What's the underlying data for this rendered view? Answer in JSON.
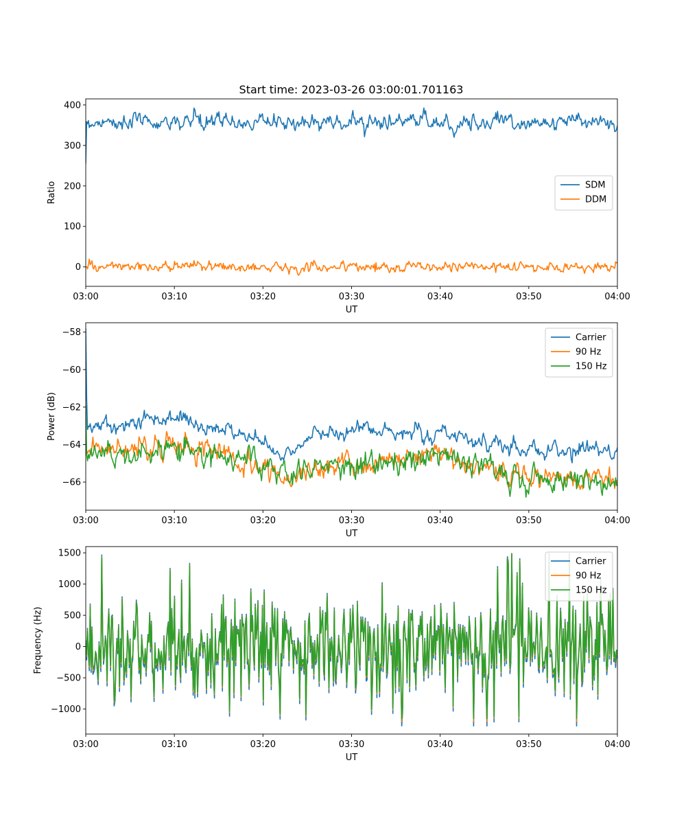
{
  "figure": {
    "title": "Start time: 2023-03-26 03:00:01.701163"
  },
  "chart_data": [
    {
      "type": "line",
      "title": "Start time: 2023-03-26 03:00:01.701163",
      "xlabel": "UT",
      "ylabel": "Ratio",
      "xlim": [
        "03:00",
        "04:00"
      ],
      "ylim": [
        -48,
        415
      ],
      "x_ticks": [
        "03:00",
        "03:10",
        "03:20",
        "03:30",
        "03:40",
        "03:50",
        "04:00"
      ],
      "y_ticks": [
        0,
        100,
        200,
        300,
        400
      ],
      "legend_placement": "center-right",
      "grid": false,
      "sample_count": 600,
      "series": [
        {
          "name": "SDM",
          "color": "#1f77b4",
          "start_value": 255,
          "mean": 358,
          "spread": 15,
          "min": 318,
          "max": 393
        },
        {
          "name": "DDM",
          "color": "#ff7f0e",
          "start_value": 0,
          "mean": 0,
          "spread": 9,
          "min": -25,
          "max": 23
        }
      ]
    },
    {
      "type": "line",
      "xlabel": "UT",
      "ylabel": "Power (dB)",
      "xlim": [
        "03:00",
        "04:00"
      ],
      "ylim": [
        -67.5,
        -57.5
      ],
      "x_ticks": [
        "03:00",
        "03:10",
        "03:20",
        "03:30",
        "03:40",
        "03:50",
        "04:00"
      ],
      "y_ticks": [
        -66,
        -64,
        -62,
        -60,
        -58
      ],
      "legend_placement": "top-right",
      "grid": false,
      "sample_count": 600,
      "series": [
        {
          "name": "Carrier",
          "color": "#1f77b4",
          "start_value": -57.8,
          "trend": [
            [
              0,
              -63.0
            ],
            [
              10,
              -62.6
            ],
            [
              20,
              -63.8
            ],
            [
              23,
              -64.6
            ],
            [
              25,
              -63.6
            ],
            [
              30,
              -63.2
            ],
            [
              40,
              -63.3
            ],
            [
              46,
              -64.0
            ],
            [
              50,
              -64.4
            ],
            [
              55,
              -64.2
            ],
            [
              60,
              -64.5
            ]
          ],
          "spread": 0.3
        },
        {
          "name": "90 Hz",
          "color": "#ff7f0e",
          "start_value": -64.2,
          "trend": [
            [
              0,
              -64.3
            ],
            [
              10,
              -64.0
            ],
            [
              20,
              -65.0
            ],
            [
              23,
              -66.0
            ],
            [
              25,
              -65.4
            ],
            [
              30,
              -65.0
            ],
            [
              40,
              -64.6
            ],
            [
              46,
              -65.2
            ],
            [
              50,
              -65.8
            ],
            [
              55,
              -65.6
            ],
            [
              60,
              -65.9
            ]
          ],
          "spread": 0.4
        },
        {
          "name": "150 Hz",
          "color": "#2ca02c",
          "start_value": -61.9,
          "trend": [
            [
              0,
              -64.5
            ],
            [
              10,
              -64.2
            ],
            [
              20,
              -65.0
            ],
            [
              23,
              -66.0
            ],
            [
              25,
              -65.4
            ],
            [
              30,
              -65.0
            ],
            [
              40,
              -64.6
            ],
            [
              46,
              -65.2
            ],
            [
              50,
              -65.8
            ],
            [
              55,
              -66.0
            ],
            [
              60,
              -66.1
            ]
          ],
          "spread": 0.45
        }
      ]
    },
    {
      "type": "line",
      "xlabel": "UT",
      "ylabel": "Frequency (Hz)",
      "xlim": [
        "03:00",
        "04:00"
      ],
      "ylim": [
        -1400,
        1600
      ],
      "x_ticks": [
        "03:00",
        "03:10",
        "03:20",
        "03:30",
        "03:40",
        "03:50",
        "04:00"
      ],
      "y_ticks": [
        -1000,
        -500,
        0,
        500,
        1000,
        1500
      ],
      "legend_placement": "top-right",
      "grid": false,
      "sample_count": 600,
      "series": [
        {
          "name": "Carrier",
          "color": "#1f77b4",
          "offset": -40,
          "mean": 0,
          "spread": 380,
          "min": -1270,
          "max": 1470
        },
        {
          "name": "90 Hz",
          "color": "#ff7f0e",
          "offset": -10,
          "mean": 0,
          "spread": 380,
          "min": -1200,
          "max": 1490
        },
        {
          "name": "150 Hz",
          "color": "#2ca02c",
          "offset": 0,
          "mean": 0,
          "spread": 380,
          "min": -1150,
          "max": 1490
        }
      ]
    }
  ]
}
